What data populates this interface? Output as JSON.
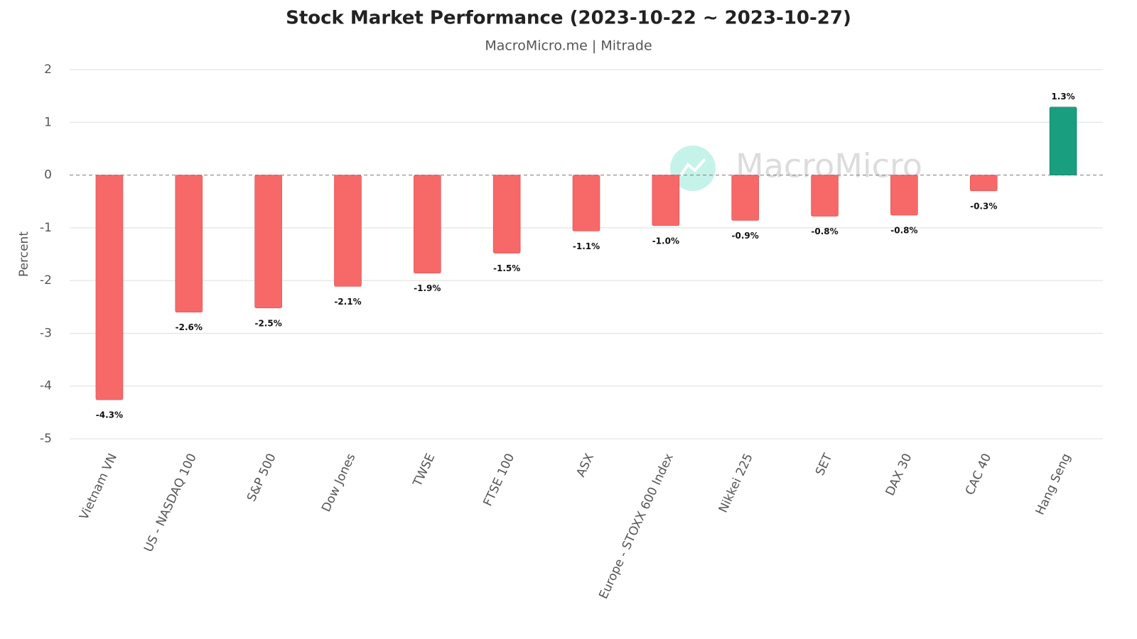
{
  "chart_data": {
    "type": "bar",
    "title": "Stock Market Performance (2023-10-22 ~ 2023-10-27)",
    "subtitle": "MacroMicro.me | Mitrade",
    "watermark": "MacroMicro",
    "y_label": "Percent",
    "categories": [
      "Vietnam VN",
      "US - NASDAQ 100",
      "S&P 500",
      "Dow Jones",
      "TWSE",
      "FTSE 100",
      "ASX",
      "Europe - STOXX 600 Index",
      "Nikkei 225",
      "SET",
      "DAX 30",
      "CAC 40",
      "Hang Seng"
    ],
    "values": [
      -4.26,
      -2.6,
      -2.52,
      -2.11,
      -1.86,
      -1.48,
      -1.06,
      -0.96,
      -0.86,
      -0.78,
      -0.76,
      -0.3,
      1.29
    ],
    "value_labels": [
      "-4.3%",
      "-2.6%",
      "-2.5%",
      "-2.1%",
      "-1.9%",
      "-1.5%",
      "-1.1%",
      "-1.0%",
      "-0.9%",
      "-0.8%",
      "-0.8%",
      "-0.3%",
      "1.3%"
    ],
    "color_negative": "#f76868",
    "color_positive": "#1a9e80",
    "ylim": [
      -5,
      2
    ],
    "yticks": [
      -5,
      -4,
      -3,
      -2,
      -1,
      0,
      1,
      2
    ],
    "grid": true
  }
}
